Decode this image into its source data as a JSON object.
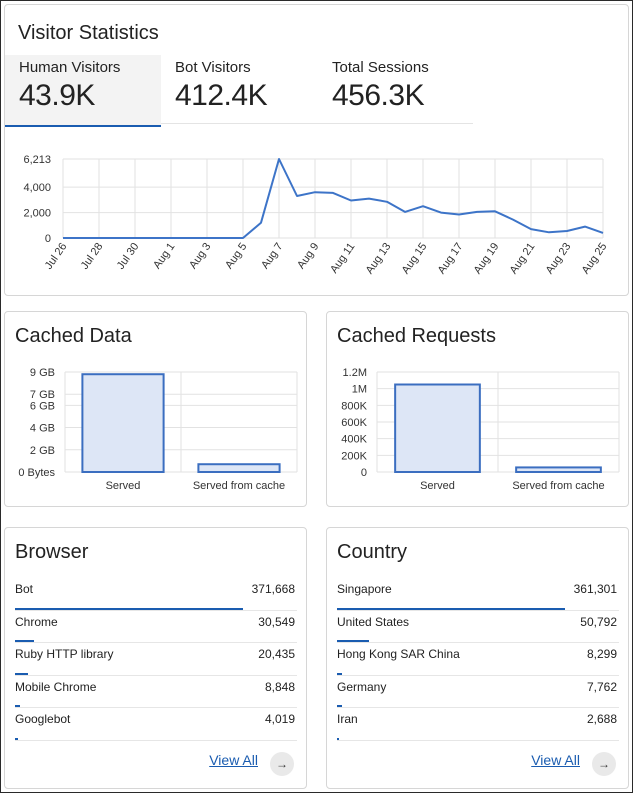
{
  "visitors": {
    "title": "Visitor Statistics",
    "tabs": [
      {
        "label": "Human Visitors",
        "value": "43.9K"
      },
      {
        "label": "Bot Visitors",
        "value": "412.4K"
      },
      {
        "label": "Total Sessions",
        "value": "456.3K"
      }
    ]
  },
  "cached_data": {
    "title": "Cached Data"
  },
  "cached_requests": {
    "title": "Cached Requests"
  },
  "browser": {
    "title": "Browser",
    "items": [
      {
        "name": "Bot",
        "count": "371,668",
        "fraction": 1.0
      },
      {
        "name": "Chrome",
        "count": "30,549",
        "fraction": 0.082
      },
      {
        "name": "Ruby HTTP library",
        "count": "20,435",
        "fraction": 0.055
      },
      {
        "name": "Mobile Chrome",
        "count": "8,848",
        "fraction": 0.024
      },
      {
        "name": "Googlebot",
        "count": "4,019",
        "fraction": 0.011
      }
    ],
    "view_all": "View All"
  },
  "country": {
    "title": "Country",
    "items": [
      {
        "name": "Singapore",
        "count": "361,301",
        "fraction": 1.0
      },
      {
        "name": "United States",
        "count": "50,792",
        "fraction": 0.141
      },
      {
        "name": "Hong Kong SAR China",
        "count": "8,299",
        "fraction": 0.023
      },
      {
        "name": "Germany",
        "count": "7,762",
        "fraction": 0.021
      },
      {
        "name": "Iran",
        "count": "2,688",
        "fraction": 0.007
      }
    ],
    "view_all": "View All"
  },
  "colors": {
    "accent": "#1a5cb0",
    "line": "#3d74c8",
    "bar_fill": "#dde6f6",
    "bar_stroke": "#3b6ec0",
    "grid": "#e2e2e2"
  },
  "icons": {
    "view_all_arrow": "arrow-right-icon"
  },
  "chart_data": [
    {
      "type": "line",
      "x": [
        "Jul 26",
        "Jul 27",
        "Jul 28",
        "Jul 29",
        "Jul 30",
        "Jul 31",
        "Aug 1",
        "Aug 2",
        "Aug 3",
        "Aug 4",
        "Aug 5",
        "Aug 6",
        "Aug 7",
        "Aug 8",
        "Aug 9",
        "Aug 10",
        "Aug 11",
        "Aug 12",
        "Aug 13",
        "Aug 14",
        "Aug 15",
        "Aug 16",
        "Aug 17",
        "Aug 18",
        "Aug 19",
        "Aug 20",
        "Aug 21",
        "Aug 22",
        "Aug 23",
        "Aug 24",
        "Aug 25"
      ],
      "x_tick_labels": [
        "Jul 26",
        "Jul 28",
        "Jul 30",
        "Aug 1",
        "Aug 3",
        "Aug 5",
        "Aug 7",
        "Aug 9",
        "Aug 11",
        "Aug 13",
        "Aug 15",
        "Aug 17",
        "Aug 19",
        "Aug 21",
        "Aug 23",
        "Aug 25"
      ],
      "values": [
        0,
        0,
        0,
        0,
        0,
        0,
        0,
        0,
        0,
        0,
        0,
        1200,
        6213,
        3300,
        3600,
        3550,
        2950,
        3100,
        2850,
        2050,
        2500,
        2000,
        1850,
        2050,
        2100,
        1450,
        700,
        450,
        550,
        900,
        400
      ],
      "y_ticks": [
        0,
        2000,
        4000,
        6213
      ],
      "y_tick_labels": [
        "0",
        "2,000",
        "4,000",
        "6,213"
      ],
      "ylim": [
        0,
        6213
      ],
      "grid": true
    },
    {
      "type": "bar",
      "categories": [
        "Served",
        "Served from cache"
      ],
      "values": [
        8.8,
        0.7
      ],
      "value_unit": "GB",
      "y_ticks": [
        0,
        2,
        4,
        6,
        7,
        9
      ],
      "y_tick_labels": [
        "0 Bytes",
        "2 GB",
        "4 GB",
        "6 GB",
        "7 GB",
        "9 GB"
      ],
      "ylim": [
        0,
        9
      ],
      "grid": true
    },
    {
      "type": "bar",
      "categories": [
        "Served",
        "Served from cache"
      ],
      "values": [
        1050000,
        55000
      ],
      "y_ticks": [
        0,
        200000,
        400000,
        600000,
        800000,
        1000000,
        1200000
      ],
      "y_tick_labels": [
        "0",
        "200K",
        "400K",
        "600K",
        "800K",
        "1M",
        "1.2M"
      ],
      "ylim": [
        0,
        1200000
      ],
      "grid": true
    }
  ]
}
